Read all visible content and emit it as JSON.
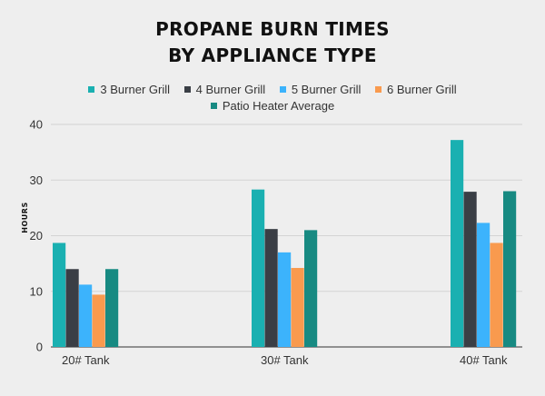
{
  "chart_data": {
    "type": "bar",
    "title_lines": [
      "PROPANE BURN TIMES",
      "BY APPLIANCE TYPE"
    ],
    "xlabel": "",
    "ylabel": "HOURS",
    "ylim": [
      0,
      40
    ],
    "yticks": [
      0,
      10,
      20,
      30,
      40
    ],
    "grid": true,
    "legend_position": "top",
    "categories": [
      "20# Tank",
      "30# Tank",
      "40# Tank"
    ],
    "series": [
      {
        "name": "3 Burner Grill",
        "color": "#1ab0b1",
        "values": [
          18.7,
          28.3,
          37.2
        ]
      },
      {
        "name": "4 Burner Grill",
        "color": "#3a3e45",
        "values": [
          14.0,
          21.2,
          27.9
        ]
      },
      {
        "name": "5 Burner Grill",
        "color": "#3cb3fc",
        "values": [
          11.2,
          17.0,
          22.3
        ]
      },
      {
        "name": "6 Burner Grill",
        "color": "#f99a4e",
        "values": [
          9.4,
          14.2,
          18.7
        ]
      },
      {
        "name": "Patio Heater Average",
        "color": "#178a82",
        "values": [
          14.0,
          21.0,
          28.0
        ]
      }
    ]
  }
}
